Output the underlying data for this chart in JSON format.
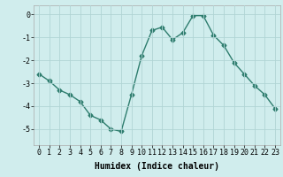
{
  "x": [
    0,
    1,
    2,
    3,
    4,
    5,
    6,
    7,
    8,
    9,
    10,
    11,
    12,
    13,
    14,
    15,
    16,
    17,
    18,
    19,
    20,
    21,
    22,
    23
  ],
  "y": [
    -2.6,
    -2.9,
    -3.3,
    -3.5,
    -3.8,
    -4.4,
    -4.6,
    -5.0,
    -5.1,
    -3.5,
    -1.8,
    -0.7,
    -0.55,
    -1.1,
    -0.8,
    -0.05,
    -0.05,
    -0.9,
    -1.35,
    -2.1,
    -2.6,
    -3.1,
    -3.5,
    -4.1
  ],
  "line_color": "#2e7d6e",
  "marker": "D",
  "markersize": 2.5,
  "linewidth": 1.0,
  "bg_color": "#d0eded",
  "grid_color": "#b0d4d4",
  "xlabel": "Humidex (Indice chaleur)",
  "xlabel_fontsize": 7,
  "tick_fontsize": 6,
  "ylim": [
    -5.7,
    0.4
  ],
  "yticks": [
    0,
    -1,
    -2,
    -3,
    -4,
    -5
  ],
  "xticks": [
    0,
    1,
    2,
    3,
    4,
    5,
    6,
    7,
    8,
    9,
    10,
    11,
    12,
    13,
    14,
    15,
    16,
    17,
    18,
    19,
    20,
    21,
    22,
    23
  ]
}
